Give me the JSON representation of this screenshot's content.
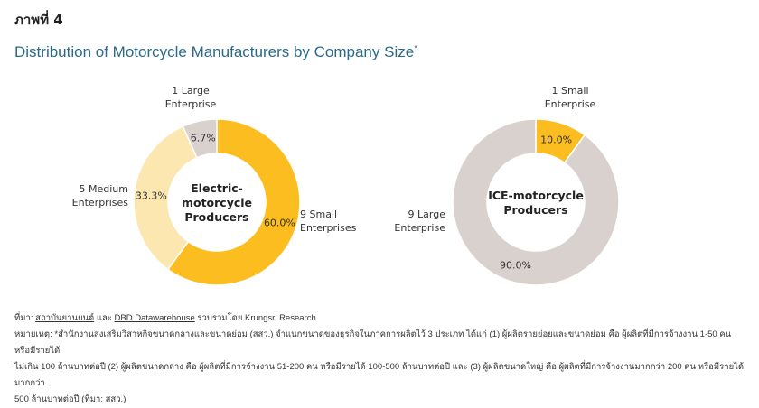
{
  "figure_label": "ภาพที่ 4",
  "title": "Distribution of Motorcycle Manufacturers by Company Size",
  "title_marker": "*",
  "chart_data": [
    {
      "type": "pie",
      "subtype": "donut",
      "center_label": [
        "Electric-",
        "motorcycle",
        "Producers"
      ],
      "categories": [
        [
          "9 Small",
          "Enterprises"
        ],
        [
          "5 Medium",
          "Enterprises"
        ],
        [
          "1 Large",
          "Enterprise"
        ]
      ],
      "values": [
        60.0,
        33.3,
        6.7
      ],
      "value_labels": [
        "60.0%",
        "33.3%",
        "6.7%"
      ],
      "colors": [
        "#fbbd1f",
        "#fde7b0",
        "#d9d1ce"
      ]
    },
    {
      "type": "pie",
      "subtype": "donut",
      "center_label": [
        "ICE-motorcycle",
        "Producers"
      ],
      "categories": [
        [
          "1 Small",
          "Enterprise"
        ],
        [
          "9 Large",
          "Enterprise"
        ]
      ],
      "values": [
        10.0,
        90.0
      ],
      "value_labels": [
        "10.0%",
        "90.0%"
      ],
      "colors": [
        "#fbbd1f",
        "#d9d1ce"
      ]
    }
  ],
  "source": {
    "prefix": "ที่มา: ",
    "link1": "สถาบันยานยนต์",
    "and": " และ ",
    "link2": "DBD Datawarehouse",
    "suffix": " รวบรวมโดย Krungsri Research"
  },
  "note": {
    "line1": "หมายเหตุ: *สำนักงานส่งเสริมวิสาหกิจขนาดกลางและขนาดย่อม (สสว.) จำแนกขนาดของธุรกิจในภาคการผลิตไว้ 3 ประเภท ได้แก่ (1) ผู้ผลิตรายย่อยและขนาดย่อม คือ ผู้ผลิตที่มีการจ้างงาน 1-50 คน หรือมีรายได้",
    "line2": "ไม่เกิน 100 ล้านบาทต่อปี (2) ผู้ผลิตขนาดกลาง คือ ผู้ผลิตที่มีการจ้างงาน 51-200 คน หรือมีรายได้ 100-500 ล้านบาทต่อปี และ (3) ผู้ผลิตขนาดใหญ่ คือ ผู้ผลิตที่มีการจ้างงานมากกว่า 200 คน หรือมีรายได้มากกว่า",
    "line3_prefix": "500 ล้านบาทต่อปี (ที่มา: ",
    "line3_link": "สสว.",
    "line3_suffix": ")"
  }
}
